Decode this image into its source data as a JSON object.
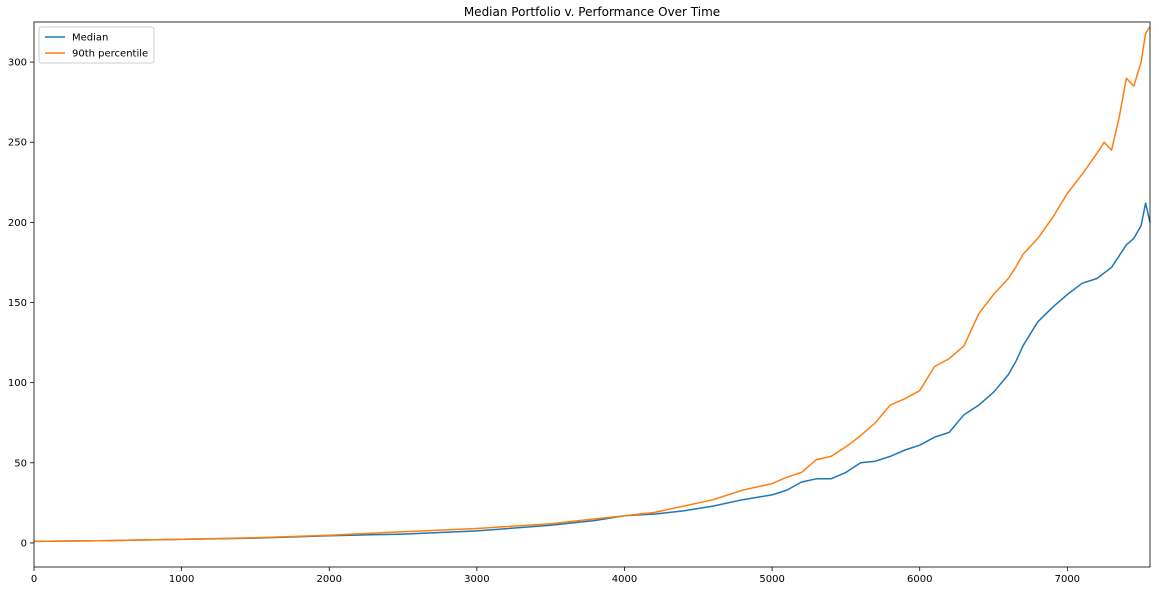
{
  "chart_data": {
    "type": "line",
    "title": "Median Portfolio v. Performance Over Time",
    "xlabel": "",
    "ylabel": "",
    "xlim": [
      0,
      7560
    ],
    "ylim": [
      -15,
      325
    ],
    "xticks": [
      0,
      1000,
      2000,
      3000,
      4000,
      5000,
      6000,
      7000
    ],
    "yticks": [
      0,
      50,
      100,
      150,
      200,
      250,
      300
    ],
    "grid": false,
    "legend_position": "upper-left",
    "series": [
      {
        "name": "Median",
        "color": "#1f77b4",
        "x": [
          0,
          500,
          1000,
          1500,
          2000,
          2500,
          3000,
          3500,
          3800,
          4000,
          4200,
          4400,
          4600,
          4800,
          5000,
          5100,
          5200,
          5300,
          5400,
          5500,
          5600,
          5700,
          5800,
          5900,
          6000,
          6100,
          6200,
          6300,
          6400,
          6500,
          6600,
          6650,
          6700,
          6800,
          6900,
          7000,
          7100,
          7200,
          7300,
          7400,
          7450,
          7500,
          7530,
          7560
        ],
        "y": [
          1,
          1.5,
          2.2,
          3,
          4.5,
          5.5,
          7.5,
          11,
          14,
          17,
          18,
          20,
          23,
          27,
          30,
          33,
          38,
          40,
          40,
          44,
          50,
          51,
          54,
          58,
          61,
          66,
          69,
          80,
          86,
          94,
          105,
          113,
          123,
          138,
          147,
          155,
          162,
          165,
          172,
          186,
          190,
          198,
          212,
          200
        ]
      },
      {
        "name": "90th percentile",
        "color": "#ff7f0e",
        "x": [
          0,
          500,
          1000,
          1500,
          2000,
          2500,
          3000,
          3500,
          3800,
          4000,
          4200,
          4400,
          4600,
          4800,
          5000,
          5100,
          5200,
          5300,
          5400,
          5500,
          5600,
          5700,
          5800,
          5900,
          6000,
          6100,
          6200,
          6300,
          6400,
          6500,
          6600,
          6650,
          6700,
          6800,
          6900,
          7000,
          7100,
          7200,
          7250,
          7300,
          7350,
          7400,
          7450,
          7500,
          7530,
          7560
        ],
        "y": [
          1,
          1.5,
          2.3,
          3.2,
          4.8,
          7,
          9,
          12,
          15,
          17,
          19,
          23,
          27,
          33,
          37,
          41,
          44,
          52,
          54,
          60,
          67,
          75,
          86,
          90,
          95,
          110,
          115,
          123,
          143,
          155,
          165,
          172,
          180,
          190,
          203,
          218,
          230,
          243,
          250,
          245,
          265,
          290,
          285,
          300,
          318,
          322
        ]
      }
    ]
  }
}
